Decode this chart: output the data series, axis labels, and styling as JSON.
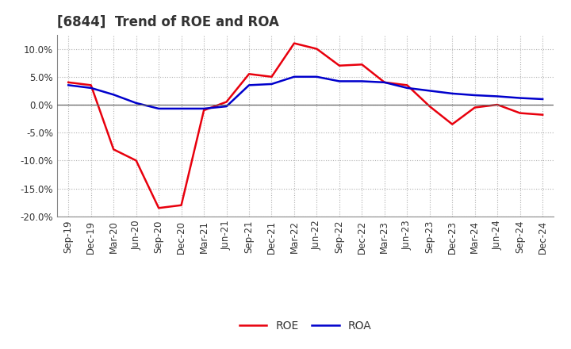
{
  "title": "[6844]  Trend of ROE and ROA",
  "x_labels": [
    "Sep-19",
    "Dec-19",
    "Mar-20",
    "Jun-20",
    "Sep-20",
    "Dec-20",
    "Mar-21",
    "Jun-21",
    "Sep-21",
    "Dec-21",
    "Mar-22",
    "Jun-22",
    "Sep-22",
    "Dec-22",
    "Mar-23",
    "Jun-23",
    "Sep-23",
    "Dec-23",
    "Mar-24",
    "Jun-24",
    "Sep-24",
    "Dec-24"
  ],
  "roe": [
    4.0,
    3.5,
    -8.0,
    -10.0,
    -18.5,
    -18.0,
    -1.0,
    0.5,
    5.5,
    5.0,
    11.0,
    10.0,
    7.0,
    7.2,
    4.0,
    3.5,
    -0.3,
    -3.5,
    -0.5,
    0.0,
    -1.5,
    -1.8
  ],
  "roa": [
    3.5,
    3.0,
    1.8,
    0.3,
    -0.7,
    -0.7,
    -0.7,
    -0.3,
    3.5,
    3.7,
    5.0,
    5.0,
    4.2,
    4.2,
    4.0,
    3.0,
    2.5,
    2.0,
    1.7,
    1.5,
    1.2,
    1.0
  ],
  "roe_color": "#e8000d",
  "roa_color": "#0000cc",
  "background_color": "#ffffff",
  "grid_color": "#b0b0b0",
  "ylim": [
    -20.0,
    12.5
  ],
  "yticks": [
    -20.0,
    -15.0,
    -10.0,
    -5.0,
    0.0,
    5.0,
    10.0
  ],
  "legend_roe": "ROE",
  "legend_roa": "ROA",
  "title_fontsize": 12,
  "axis_fontsize": 8.5
}
